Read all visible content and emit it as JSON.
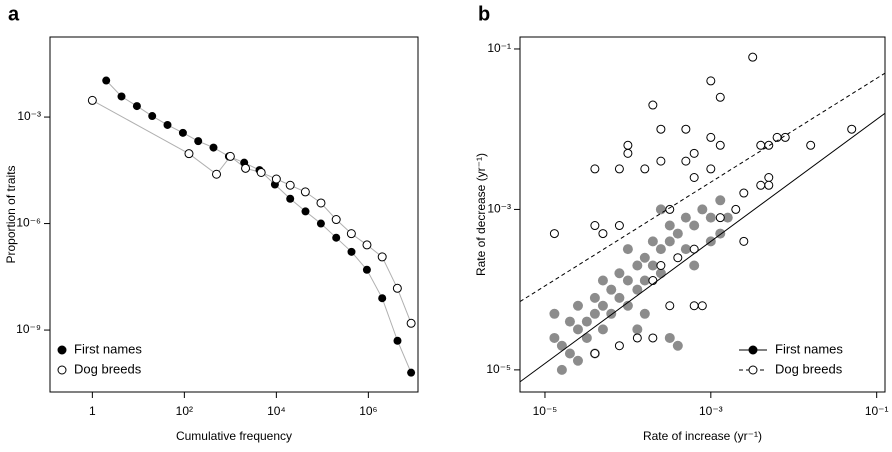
{
  "chart_data": [
    {
      "type": "scatter",
      "panel_label": "a",
      "xlabel": "Cumulative frequency",
      "ylabel": "Proportion of traits",
      "log_x": true,
      "log_y": true,
      "legend": "bottom-left",
      "xlim": [
        0.12,
        12000000
      ],
      "ylim": [
        1.8e-11,
        0.18
      ],
      "xticks": [
        1,
        {
          "value": 100,
          "label": "10²"
        },
        {
          "value": 10000,
          "label": "10⁴"
        },
        {
          "value": 1000000,
          "label": "10⁶"
        }
      ],
      "yticks": [
        {
          "value": 1e-09,
          "label": "10⁻⁹"
        },
        {
          "value": 1e-06,
          "label": "10⁻⁶"
        },
        {
          "value": 0.001,
          "label": "10⁻³"
        }
      ],
      "series": [
        {
          "name": "First names",
          "color": "#000000",
          "marker": "filled",
          "connect": true,
          "x": [
            2,
            4.3,
            9.3,
            20,
            43,
            93,
            200,
            430,
            930,
            2000,
            4300,
            9300,
            20000,
            43000,
            93000,
            200000,
            430000,
            930000,
            2000000,
            4300000,
            8500000
          ],
          "values": [
            0.0107,
            0.0038,
            0.00204,
            0.00107,
            0.0006,
            0.00036,
            0.00021,
            0.000138,
            7.8e-05,
            5.2e-05,
            3.2e-05,
            1.26e-05,
            5e-06,
            2.2e-06,
            1e-06,
            4e-07,
            1.6e-07,
            5e-08,
            7.9e-09,
            5e-10,
            6.3e-11
          ]
        },
        {
          "name": "Dog breeds",
          "color": "#000000",
          "marker": "open",
          "connect": true,
          "x": [
            1,
            126,
            500,
            1000,
            2140,
            4680,
            10000,
            20000,
            42700,
            93300,
            200000,
            427000,
            933000,
            2000000,
            4270000,
            8510000
          ],
          "values": [
            0.00295,
            9.3e-05,
            2.45e-05,
            7.8e-05,
            3.6e-05,
            2.75e-05,
            1.8e-05,
            1.2e-05,
            7.8e-06,
            3.8e-06,
            1.3e-06,
            5.2e-07,
            2.5e-07,
            1.15e-07,
            1.5e-08,
            1.55e-09
          ]
        }
      ]
    },
    {
      "type": "scatter",
      "panel_label": "b",
      "xlabel": "Rate of increase (yr⁻¹)",
      "ylabel": "Rate of decrease (yr⁻¹)",
      "log_x": true,
      "log_y": true,
      "legend": "bottom-right",
      "xlim": [
        5e-06,
        0.126
      ],
      "ylim": [
        5.3e-06,
        0.141
      ],
      "xticks": [
        {
          "value": 1e-05,
          "label": "10⁻⁵"
        },
        {
          "value": 0.001,
          "label": "10⁻³"
        },
        {
          "value": 0.1,
          "label": "10⁻¹"
        }
      ],
      "yticks": [
        {
          "value": 1e-05,
          "label": "10⁻⁵"
        },
        {
          "value": 0.001,
          "label": "10⁻³"
        },
        {
          "value": 0.1,
          "label": "10⁻¹"
        }
      ],
      "series": [
        {
          "name": "First names",
          "color": "#000000",
          "alpha": 0.45,
          "marker": "filled",
          "linestyle": "solid",
          "x": [
            1.3e-05,
            1.6e-05,
            2e-05,
            2.5e-05,
            2.5e-05,
            3.2e-05,
            3.2e-05,
            4e-05,
            4e-05,
            5e-05,
            5e-05,
            6.3e-05,
            6.3e-05,
            7.9e-05,
            7.9e-05,
            0.0001,
            0.0001,
            0.00013,
            0.00013,
            0.00016,
            0.00016,
            0.0002,
            0.0002,
            0.00025,
            0.00025,
            0.00032,
            0.00032,
            0.0004,
            0.0005,
            0.0005,
            0.00063,
            0.00079,
            0.001,
            0.0013,
            0.0016,
            2.5e-05,
            1.6e-05,
            1.3e-05,
            4e-05,
            0.00013,
            0.00032,
            0.0004,
            0.0013,
            0.00025,
            5e-05,
            0.0001,
            0.00016,
            0.00063,
            2e-05,
            0.001
          ],
          "values": [
            2.5e-05,
            2e-05,
            4e-05,
            3.2e-05,
            6.3e-05,
            4e-05,
            2.5e-05,
            5e-05,
            7.9e-05,
            6.3e-05,
            3.2e-05,
            0.0001,
            5e-05,
            7.9e-05,
            0.00016,
            0.00013,
            6.3e-05,
            0.0002,
            0.0001,
            0.00025,
            0.00013,
            0.0002,
            0.0004,
            0.00032,
            0.00016,
            0.0004,
            0.00063,
            0.0005,
            0.00079,
            0.00032,
            0.00063,
            0.001,
            0.00079,
            0.0005,
            0.00079,
            1.3e-05,
            1e-05,
            5e-05,
            1.6e-05,
            3.2e-05,
            2.5e-05,
            2e-05,
            0.0013,
            0.001,
            0.00013,
            0.00032,
            5e-05,
            0.0002,
            1.6e-05,
            0.0004
          ],
          "fit_x": [
            5e-06,
            0.126
          ],
          "fit_y": [
            7.1e-06,
            0.0158
          ]
        },
        {
          "name": "Dog breeds",
          "color": "#000000",
          "marker": "open",
          "linestyle": "dashed",
          "x": [
            0.0032,
            0.001,
            0.0013,
            0.0002,
            0.05,
            0.016,
            0.0079,
            0.00025,
            0.0005,
            0.001,
            0.0013,
            0.0001,
            0.0001,
            0.00063,
            0.00025,
            0.0005,
            0.00016,
            0.001,
            0.004,
            0.005,
            0.0063,
            0.00063,
            7.9e-05,
            4e-05,
            0.005,
            0.005,
            0.004,
            0.0025,
            0.002,
            0.00032,
            7.9e-05,
            4e-05,
            1.3e-05,
            0.0013,
            0.0025,
            5e-05,
            0.00025,
            0.0004,
            0.00063,
            0.0002,
            0.00032,
            0.00063,
            0.00079,
            7.9e-05,
            0.00013,
            0.0002,
            4e-05
          ],
          "values": [
            0.079,
            0.04,
            0.025,
            0.02,
            0.01,
            0.0063,
            0.0079,
            0.01,
            0.01,
            0.0079,
            0.0063,
            0.0063,
            0.005,
            0.005,
            0.004,
            0.004,
            0.0032,
            0.0032,
            0.0063,
            0.0063,
            0.0079,
            0.0025,
            0.0032,
            0.0032,
            0.0025,
            0.002,
            0.002,
            0.0016,
            0.001,
            0.001,
            0.00063,
            0.00063,
            0.0005,
            0.00079,
            0.0004,
            0.0005,
            0.0002,
            0.00025,
            0.00032,
            0.00013,
            6.3e-05,
            6.3e-05,
            6.3e-05,
            2e-05,
            2.5e-05,
            2.5e-05,
            1.6e-05
          ],
          "fit_x": [
            5e-06,
            0.126
          ],
          "fit_y": [
            7.1e-05,
            0.05
          ]
        }
      ]
    }
  ]
}
